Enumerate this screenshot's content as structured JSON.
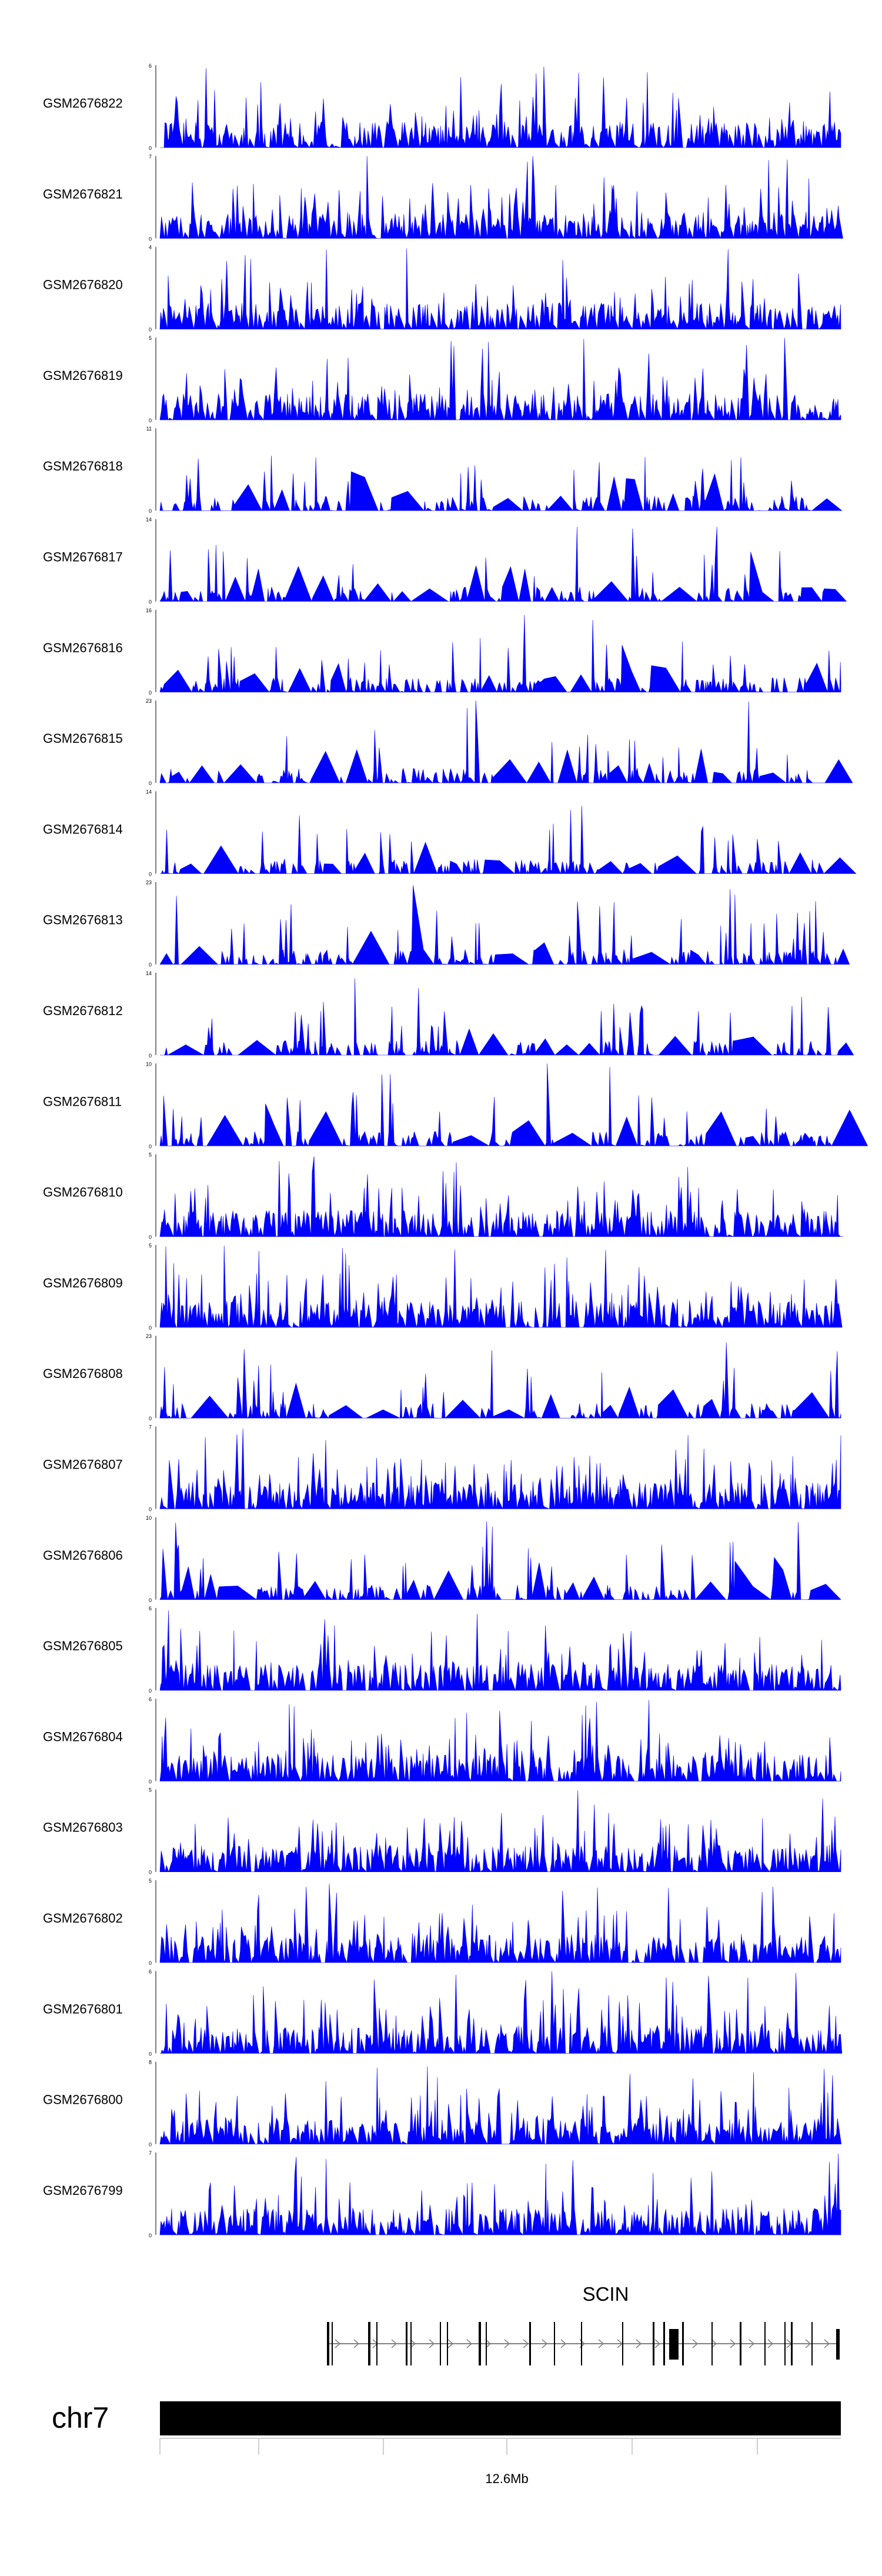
{
  "chart_data": {
    "type": "area",
    "title": "",
    "fill_color": "#0000ff",
    "tracks": [
      {
        "name": "GSM2676822",
        "ymax": "6",
        "ymin": "0"
      },
      {
        "name": "GSM2676821",
        "ymax": "7",
        "ymin": "0"
      },
      {
        "name": "GSM2676820",
        "ymax": "4",
        "ymin": "0"
      },
      {
        "name": "GSM2676819",
        "ymax": "5",
        "ymin": "0"
      },
      {
        "name": "GSM2676818",
        "ymax": "11",
        "ymin": "0"
      },
      {
        "name": "GSM2676817",
        "ymax": "14",
        "ymin": "0"
      },
      {
        "name": "GSM2676816",
        "ymax": "16",
        "ymin": "0"
      },
      {
        "name": "GSM2676815",
        "ymax": "23",
        "ymin": "0"
      },
      {
        "name": "GSM2676814",
        "ymax": "14",
        "ymin": "0"
      },
      {
        "name": "GSM2676813",
        "ymax": "23",
        "ymin": "0"
      },
      {
        "name": "GSM2676812",
        "ymax": "14",
        "ymin": "0"
      },
      {
        "name": "GSM2676811",
        "ymax": "10",
        "ymin": "0"
      },
      {
        "name": "GSM2676810",
        "ymax": "5",
        "ymin": "0"
      },
      {
        "name": "GSM2676809",
        "ymax": "5",
        "ymin": "0"
      },
      {
        "name": "GSM2676808",
        "ymax": "23",
        "ymin": "0"
      },
      {
        "name": "GSM2676807",
        "ymax": "7",
        "ymin": "0"
      },
      {
        "name": "GSM2676806",
        "ymax": "10",
        "ymin": "0"
      },
      {
        "name": "GSM2676805",
        "ymax": "6",
        "ymin": "0"
      },
      {
        "name": "GSM2676804",
        "ymax": "6",
        "ymin": "0"
      },
      {
        "name": "GSM2676803",
        "ymax": "5",
        "ymin": "0"
      },
      {
        "name": "GSM2676802",
        "ymax": "5",
        "ymin": "0"
      },
      {
        "name": "GSM2676801",
        "ymax": "6",
        "ymin": "0"
      },
      {
        "name": "GSM2676800",
        "ymax": "8",
        "ymin": "0"
      },
      {
        "name": "GSM2676799",
        "ymax": "7",
        "ymin": "0"
      }
    ],
    "gene": {
      "name": "SCIN",
      "strand": "+"
    },
    "chromosome": "chr7",
    "axis_label": "12.6Mb"
  }
}
